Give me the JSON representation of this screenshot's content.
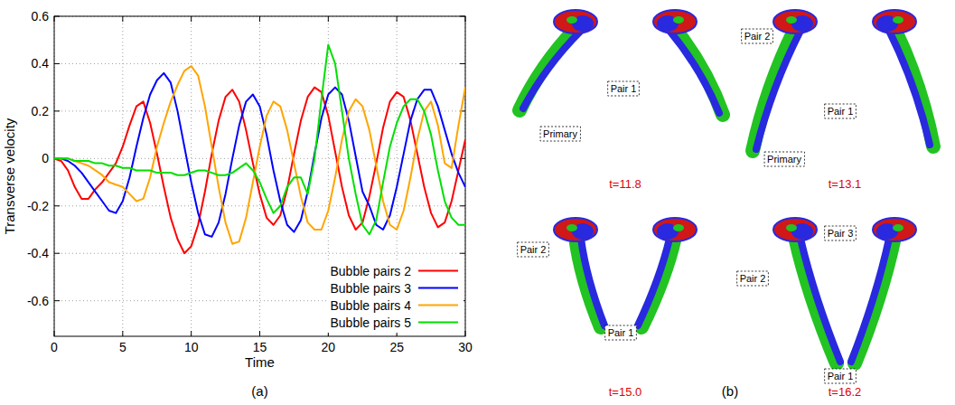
{
  "chart_data": {
    "type": "line",
    "x_label": "Time",
    "y_label": "Transverse velocity",
    "xlim": [
      0,
      30
    ],
    "ylim": [
      -0.75,
      0.6
    ],
    "xticks": [
      0,
      5,
      10,
      15,
      20,
      25,
      30
    ],
    "yticks": [
      0.6,
      0.4,
      0.2,
      0,
      -0.2,
      -0.4,
      -0.6
    ],
    "grid": true,
    "legend": "lower right",
    "x": [
      0,
      0.5,
      1,
      1.5,
      2,
      2.5,
      3,
      3.5,
      4,
      4.5,
      5,
      5.5,
      6,
      6.5,
      7,
      7.5,
      8,
      8.5,
      9,
      9.5,
      10,
      10.5,
      11,
      11.5,
      12,
      12.5,
      13,
      13.5,
      14,
      14.5,
      15,
      15.5,
      16,
      16.5,
      17,
      17.5,
      18,
      18.5,
      19,
      19.5,
      20,
      20.5,
      21,
      21.5,
      22,
      22.5,
      23,
      23.5,
      24,
      24.5,
      25,
      25.5,
      26,
      26.5,
      27,
      27.5,
      28,
      28.5,
      29,
      29.5,
      30
    ],
    "series": [
      {
        "name": "Bubble pairs 2",
        "color": "#ff0000",
        "values": [
          0,
          -0.01,
          -0.05,
          -0.12,
          -0.17,
          -0.17,
          -0.13,
          -0.1,
          -0.06,
          -0.02,
          0.05,
          0.14,
          0.22,
          0.24,
          0.15,
          0.02,
          -0.12,
          -0.25,
          -0.34,
          -0.4,
          -0.37,
          -0.28,
          -0.14,
          0.02,
          0.16,
          0.26,
          0.29,
          0.24,
          0.12,
          -0.02,
          -0.15,
          -0.25,
          -0.28,
          -0.24,
          -0.13,
          0.02,
          0.16,
          0.26,
          0.3,
          0.28,
          0.18,
          0.03,
          -0.12,
          -0.24,
          -0.3,
          -0.27,
          -0.16,
          -0.02,
          0.13,
          0.24,
          0.28,
          0.26,
          0.16,
          0.02,
          -0.12,
          -0.23,
          -0.29,
          -0.27,
          -0.18,
          -0.05,
          0.08
        ]
      },
      {
        "name": "Bubble pairs 3",
        "color": "#0000ff",
        "values": [
          0,
          0,
          -0.01,
          -0.03,
          -0.06,
          -0.1,
          -0.14,
          -0.18,
          -0.22,
          -0.23,
          -0.18,
          -0.08,
          0.05,
          0.17,
          0.27,
          0.33,
          0.36,
          0.32,
          0.2,
          0.05,
          -0.1,
          -0.23,
          -0.32,
          -0.33,
          -0.27,
          -0.15,
          0,
          0.14,
          0.24,
          0.27,
          0.22,
          0.1,
          -0.05,
          -0.18,
          -0.28,
          -0.31,
          -0.26,
          -0.14,
          0.02,
          0.17,
          0.27,
          0.3,
          0.27,
          0.16,
          0.01,
          -0.14,
          -0.2,
          -0.28,
          -0.3,
          -0.24,
          -0.12,
          0.02,
          0.16,
          0.25,
          0.29,
          0.29,
          0.22,
          0.12,
          0.02,
          -0.06,
          -0.12
        ]
      },
      {
        "name": "Bubble pairs 4",
        "color": "#ffa500",
        "values": [
          0,
          0,
          0,
          -0.01,
          -0.02,
          -0.03,
          -0.05,
          -0.07,
          -0.1,
          -0.11,
          -0.12,
          -0.15,
          -0.18,
          -0.17,
          -0.08,
          0.05,
          0.15,
          0.24,
          0.31,
          0.37,
          0.39,
          0.35,
          0.22,
          0.05,
          -0.12,
          -0.27,
          -0.36,
          -0.35,
          -0.25,
          -0.1,
          0.05,
          0.18,
          0.24,
          0.22,
          0.12,
          -0.02,
          -0.16,
          -0.27,
          -0.3,
          -0.3,
          -0.22,
          -0.08,
          0.08,
          0.2,
          0.25,
          0.22,
          0.12,
          -0.03,
          -0.18,
          -0.28,
          -0.3,
          -0.22,
          -0.08,
          0.08,
          0.2,
          0.24,
          0.14,
          -0.02,
          -0.04,
          0.14,
          0.3
        ]
      },
      {
        "name": "Bubble pairs 5",
        "color": "#00e000",
        "values": [
          0,
          0,
          0,
          -0.01,
          -0.01,
          -0.01,
          -0.02,
          -0.02,
          -0.03,
          -0.03,
          -0.04,
          -0.04,
          -0.05,
          -0.05,
          -0.05,
          -0.06,
          -0.06,
          -0.06,
          -0.07,
          -0.07,
          -0.06,
          -0.05,
          -0.05,
          -0.06,
          -0.07,
          -0.07,
          -0.06,
          -0.04,
          -0.02,
          -0.05,
          -0.1,
          -0.17,
          -0.23,
          -0.2,
          -0.12,
          -0.08,
          -0.08,
          -0.15,
          0,
          0.25,
          0.48,
          0.4,
          0.2,
          0,
          -0.15,
          -0.28,
          -0.32,
          -0.26,
          -0.1,
          0.05,
          0.15,
          0.22,
          0.25,
          0.25,
          0.2,
          0.1,
          -0.05,
          -0.18,
          -0.25,
          -0.28,
          -0.28
        ]
      }
    ]
  },
  "figure": {
    "panel_labels": [
      "(a)",
      "(b)"
    ],
    "snapshots": [
      {
        "time": "t=11.8",
        "labels": [
          "Pair 1",
          "Primary"
        ]
      },
      {
        "time": "t=13.1",
        "labels": [
          "Pair 2",
          "Pair 1",
          "Primary"
        ]
      },
      {
        "time": "t=15.0",
        "labels": [
          "Pair 2",
          "Pair 1"
        ]
      },
      {
        "time": "t=16.2",
        "labels": [
          "Pair 3",
          "Pair 2",
          "Pair 1"
        ]
      }
    ]
  }
}
